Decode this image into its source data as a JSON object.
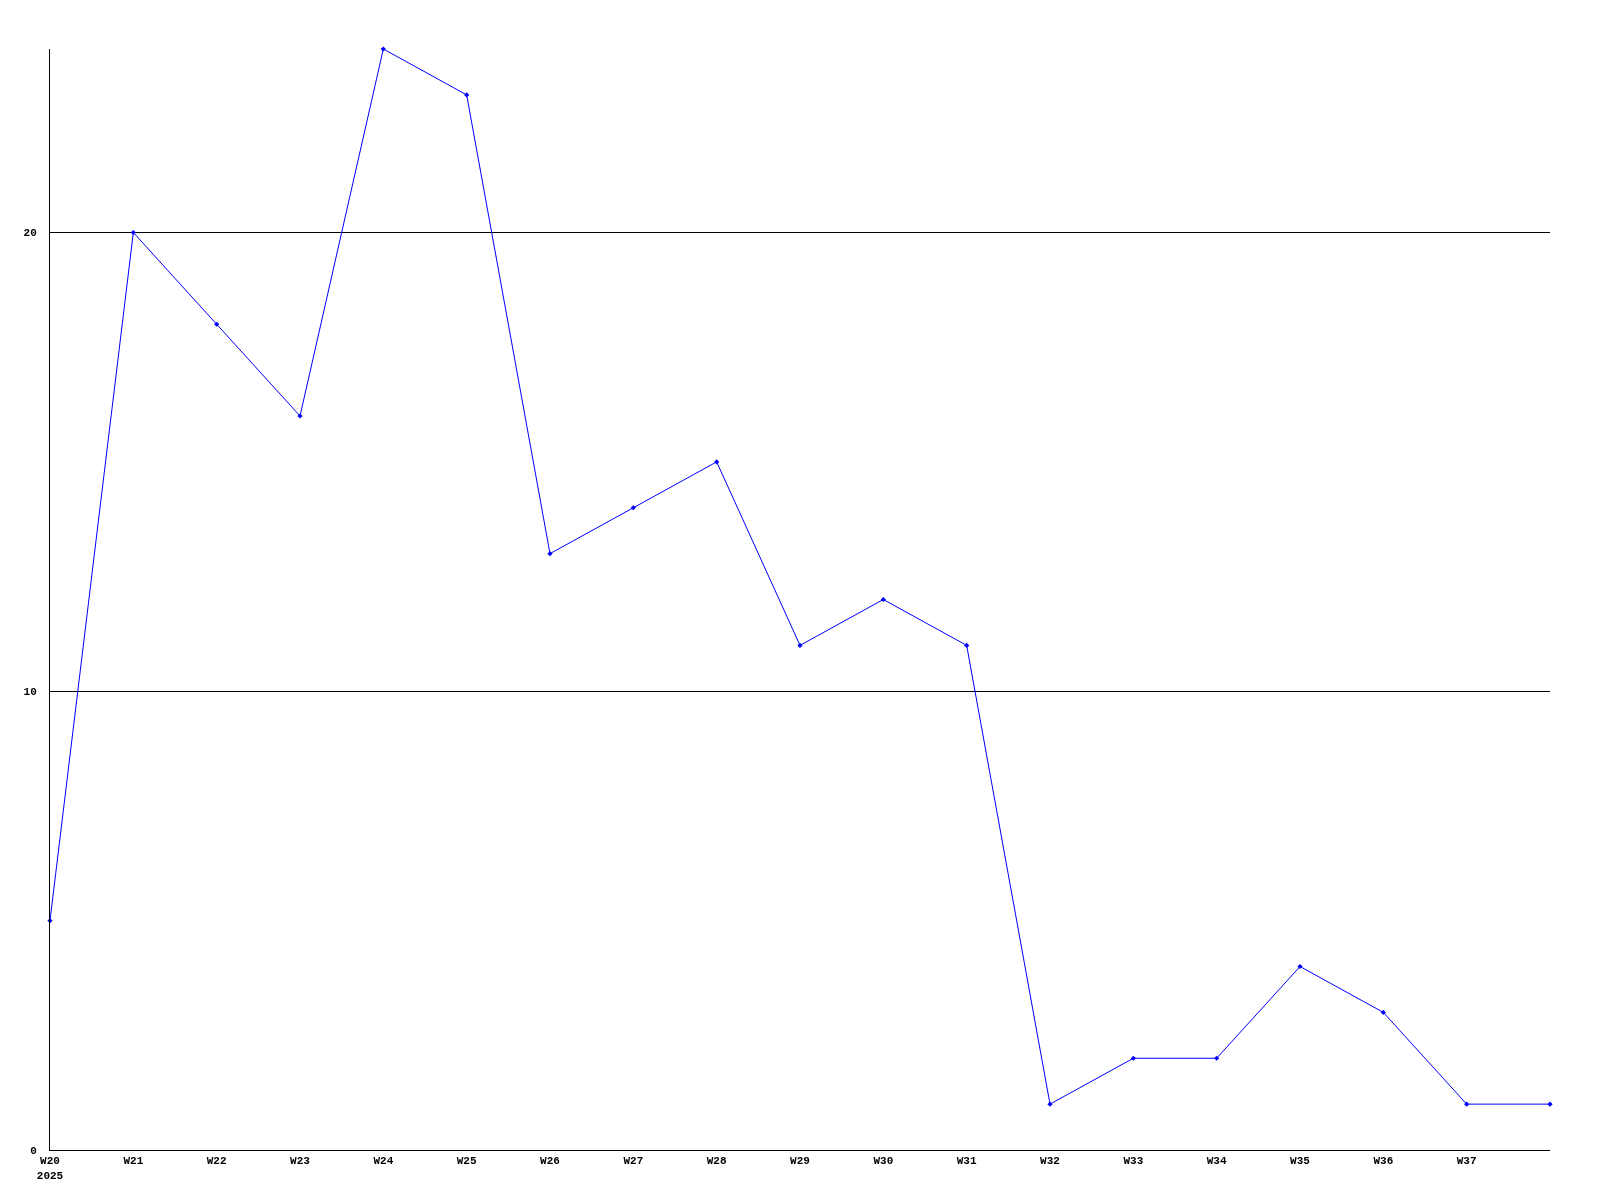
{
  "chart_data": {
    "type": "line",
    "categories": [
      "W20\n2025",
      "W21",
      "W22",
      "W23",
      "W24",
      "W25",
      "W26",
      "W27",
      "W28",
      "W29",
      "W30",
      "W31",
      "W32",
      "W33",
      "W34",
      "W35",
      "W36",
      "W37",
      null
    ],
    "series": [
      {
        "color": "#0000ff",
        "values": [
          5,
          20,
          18,
          16,
          24,
          23,
          13,
          14,
          15,
          11,
          12,
          11,
          1,
          2,
          2,
          4,
          3,
          1,
          1
        ]
      }
    ],
    "ylim": [
      0,
      24
    ],
    "yticks": [
      0,
      10,
      20
    ],
    "grid": "y",
    "marker": "diamond",
    "line_style": "solid",
    "legend": false
  }
}
